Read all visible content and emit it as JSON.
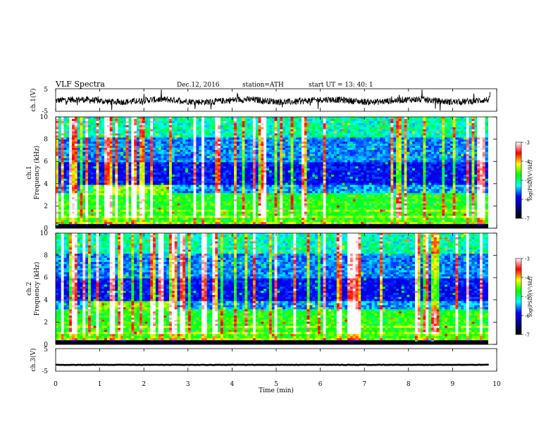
{
  "header": {
    "title": "VLF  Spectra",
    "date": "Dec.12, 2016",
    "station": "station=ATH",
    "start": "start  UT  =    13: 40: 1"
  },
  "colorbar": {
    "label": "log(PSD)(V²/Hz)",
    "ticks": [
      "-3",
      "-4",
      "-5",
      "-6",
      "-7"
    ],
    "colors": [
      "#ffffff",
      "#ff0000",
      "#ffff00",
      "#00ff00",
      "#00ffff",
      "#0000ff",
      "#000080",
      "#000000"
    ]
  },
  "chart_data": [
    {
      "type": "line",
      "name": "ch1 waveform",
      "ylabel": "ch.1(V)",
      "ylim": [
        -5,
        5
      ],
      "ytick_labels": [
        "5",
        "-5"
      ],
      "xlim": [
        0,
        10
      ],
      "baseline": 0,
      "note": "noisy waveform around 0 V with occasional spikes"
    },
    {
      "type": "heatmap",
      "name": "ch1 spectrogram",
      "ylabel_top": "ch.1",
      "ylabel": "Frequency  (kHz)",
      "ylim": [
        0,
        10
      ],
      "ytick_labels": [
        "0",
        "2",
        "4",
        "6",
        "8",
        "10"
      ],
      "xlim": [
        0,
        9.8
      ],
      "clim": [
        -7,
        -3
      ],
      "hiss_band_khz": [
        2.0,
        3.8
      ]
    },
    {
      "type": "heatmap",
      "name": "ch2 spectrogram",
      "ylabel_top": "ch.2",
      "ylabel": "Frequency  (kHz)",
      "ylim": [
        0,
        10
      ],
      "ytick_labels": [
        "0",
        "2",
        "4",
        "6",
        "8",
        "10"
      ],
      "xlim": [
        0,
        9.8
      ],
      "clim": [
        -7,
        -3
      ],
      "hiss_band_khz": [
        2.0,
        3.9
      ]
    },
    {
      "type": "line",
      "name": "ch3 waveform",
      "ylabel": "ch.3(V)",
      "ylim": [
        -5,
        5
      ],
      "ytick_labels": [
        "5",
        "-5"
      ],
      "xlim": [
        0,
        10
      ],
      "baseline": -2.2,
      "xlabel": "Time  (min)",
      "xtick_labels": [
        "0",
        "1",
        "2",
        "3",
        "4",
        "5",
        "6",
        "7",
        "8",
        "9",
        "10"
      ]
    }
  ]
}
